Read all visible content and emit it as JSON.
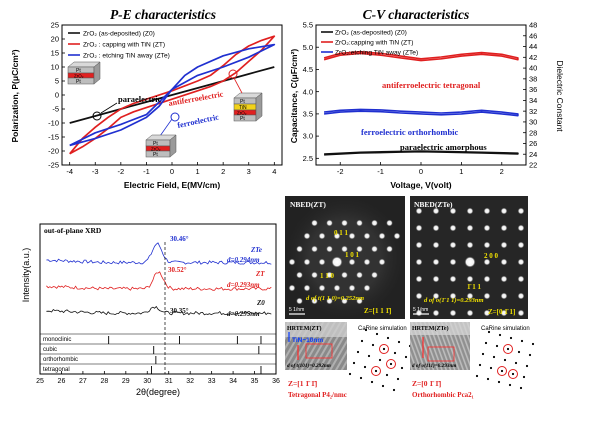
{
  "pe": {
    "title": "P-E characteristics",
    "xlabel": "Electric Field, E(MV/cm)",
    "ylabel": "Polarization, P(μC/cm²)",
    "legend": [
      "ZrO₂ (as-deposited) (Z0)",
      "ZrO₂ : capping with TiN (ZT)",
      "ZrO₂ : etching TiN away (ZTe)"
    ],
    "labels": {
      "paraelectric": "paraelectric",
      "antiferro": "antiferroelectric",
      "ferro": "ferroelectric"
    },
    "stack1": [
      "Pt",
      "ZrO₂",
      "Pt"
    ],
    "stack2": [
      "Pt",
      "TiN",
      "ZrO₂",
      "Pt"
    ],
    "stack3": [
      "Pt",
      "ZrO₂",
      "Pt"
    ]
  },
  "cv": {
    "title": "C-V characteristics",
    "xlabel": "Voltage, V(volt)",
    "ylabel": "Capacitance, C(μF/cm²)",
    "y2label": "Dielectric Constant",
    "legend": [
      "ZrO₂ (as-deposited) (Z0)",
      "ZrO₂:capping with TiN (ZT)",
      "ZrO₂:etching TiN away (ZTe)"
    ],
    "labels": {
      "antiferro": "antiferroelectric tetragonal",
      "ferro": "ferroelectric orthorhombic",
      "para": "paraelectric amorphous"
    }
  },
  "xrd": {
    "title": "out-of-plane XRD",
    "xlabel": "2θ(degree)",
    "ylabel": "Intensity(a.u.)",
    "ann": [
      {
        "name": "ZTe",
        "peak": "30.46°",
        "d": "d=0.294nm"
      },
      {
        "name": "ZT",
        "peak": "30.52°",
        "d": "d=0.293nm"
      },
      {
        "name": "Z0",
        "peak": "30.35°",
        "d": "d=0.295nm"
      }
    ],
    "refs": [
      "monoclinic",
      "cubic",
      "orthorhombic",
      "tetragonal"
    ]
  },
  "nbed_zt": {
    "title": "NBED(ZT)",
    "spots": [
      "0 1 1",
      "1 0 1",
      "1 1 0"
    ],
    "dtext": "d of t(1 1 0)=0.252nm",
    "zone": "Z=[1 1 1̄]",
    "scale": "5 1/nm"
  },
  "nbed_zte": {
    "title": "NBED(ZTe)",
    "spots": [
      "2 0 0",
      "1̄ 1 1"
    ],
    "dtext": "d of o(1̄ 1 1)=0.293nm",
    "zone": "Z=[0 1̄ 1]",
    "scale": "5 1/nm"
  },
  "hrtem_zt": {
    "title": "HRTEM(ZT)",
    "tin": "TiN~10nm",
    "dtext": "d of t(101)=0.292nm",
    "sim": "CaRine simulation",
    "zone": "Z=[1 1̄ 1̄]",
    "phase": "Tetragonal P4₂/nmc"
  },
  "hrtem_zte": {
    "title": "HRTEM(ZTe)",
    "dtext": "d of o(111)=0.293nm",
    "sim": "CaRine simulation",
    "zone": "Z=[0 1̄ 1̄]",
    "phase": "Orthorhombic Pca2₁"
  },
  "chart_data": [
    {
      "type": "line",
      "title": "P-E characteristics",
      "xlabel": "Electric Field, E(MV/cm)",
      "ylabel": "Polarization, P(μC/cm²)",
      "xlim": [
        -4.3,
        4.3
      ],
      "ylim": [
        -25,
        25
      ],
      "xticks": [
        -4,
        -3,
        -2,
        -1,
        0,
        1,
        2,
        3,
        4
      ],
      "yticks": [
        -25,
        -20,
        -15,
        -10,
        -5,
        0,
        5,
        10,
        15,
        20,
        25
      ],
      "series": [
        {
          "name": "ZrO₂ (as-deposited) (Z0)",
          "color": "#111111",
          "x": [
            -4,
            -3,
            -2,
            -1,
            0,
            1,
            2,
            3,
            4
          ],
          "y": [
            -10,
            -7.5,
            -5,
            -2.5,
            0,
            2.5,
            5,
            7.5,
            10
          ]
        },
        {
          "name": "ZrO₂ : capping with TiN (ZT)",
          "color": "#e02020",
          "x": [
            -4,
            -3.5,
            -3,
            -2.5,
            -2,
            -1.5,
            -1,
            0,
            1,
            1.5,
            2,
            2.5,
            3,
            3.5,
            4,
            3.5,
            3,
            2.5,
            2,
            1.5,
            1,
            0,
            -1,
            -1.5,
            -2,
            -2.5,
            -3,
            -3.5,
            -4
          ],
          "y": [
            -21,
            -18.5,
            -15.5,
            -12,
            -8,
            -6,
            -4.5,
            -1.5,
            1.5,
            3,
            5,
            8,
            12,
            16,
            21,
            19.5,
            17.5,
            14.5,
            10.5,
            7,
            5,
            1.5,
            -1.5,
            -3,
            -5,
            -8,
            -11.5,
            -15.5,
            -21
          ]
        },
        {
          "name": "ZrO₂ : etching TiN away (ZTe)",
          "color": "#2030d0",
          "x": [
            -4,
            -3,
            -2,
            -1,
            -0.5,
            0,
            1,
            2,
            3,
            4,
            3,
            2,
            1,
            0.5,
            0,
            -1,
            -2,
            -3,
            -4
          ],
          "y": [
            -18,
            -15.5,
            -12.5,
            -8,
            -4,
            2,
            7,
            10,
            13.5,
            18,
            16.5,
            14,
            10,
            7,
            2,
            -7,
            -10.5,
            -13.5,
            -18
          ]
        }
      ]
    },
    {
      "type": "line",
      "title": "C-V characteristics",
      "xlabel": "Voltage, V(volt)",
      "ylabel": "Capacitance, C(μF/cm²)",
      "y2label": "Dielectric Constant",
      "xlim": [
        -2.6,
        2.6
      ],
      "ylim": [
        2.35,
        5.5
      ],
      "y2lim": [
        22,
        48
      ],
      "xticks": [
        -2,
        -1,
        0,
        1,
        2
      ],
      "yticks": [
        2.5,
        3.0,
        3.5,
        4.0,
        4.5,
        5.0,
        5.5
      ],
      "y2ticks": [
        22,
        24,
        26,
        28,
        30,
        32,
        34,
        36,
        38,
        40,
        42,
        44,
        46,
        48
      ],
      "series": [
        {
          "name": "ZrO₂ (as-deposited) (Z0)",
          "color": "#111111",
          "x": [
            -2.4,
            -1.5,
            -0.5,
            0,
            0.5,
            1.5,
            2.4
          ],
          "y": [
            2.58,
            2.62,
            2.64,
            2.65,
            2.64,
            2.62,
            2.6
          ]
        },
        {
          "name": "ZrO₂:capping with TiN (ZT)",
          "color": "#e02020",
          "x": [
            -2.4,
            -2,
            -1.5,
            -1,
            -0.5,
            0,
            0.5,
            1,
            1.5,
            2,
            2.4
          ],
          "y": [
            4.72,
            4.82,
            4.86,
            4.82,
            4.76,
            4.7,
            4.74,
            4.8,
            4.84,
            4.8,
            4.72
          ]
        },
        {
          "name": "ZrO₂:etching TiN away (ZTe)",
          "color": "#2030d0",
          "x": [
            -2.4,
            -2,
            -1.5,
            -1,
            -0.5,
            0,
            0.5,
            1,
            1.5,
            2,
            2.4
          ],
          "y": [
            3.5,
            3.54,
            3.56,
            3.55,
            3.52,
            3.5,
            3.48,
            3.5,
            3.54,
            3.5,
            3.46
          ]
        }
      ]
    },
    {
      "type": "line",
      "title": "out-of-plane XRD",
      "xlabel": "2θ(degree)",
      "ylabel": "Intensity(a.u.)",
      "xlim": [
        25,
        36
      ],
      "xticks": [
        25,
        26,
        27,
        28,
        29,
        30,
        31,
        32,
        33,
        34,
        35,
        36
      ],
      "series": [
        {
          "name": "ZTe",
          "color": "#2030d0",
          "baseline": 3.6,
          "peak_x": 30.46,
          "peak_height": 1.0
        },
        {
          "name": "ZT",
          "color": "#e02020",
          "baseline": 2.2,
          "peak_x": 30.52,
          "peak_height": 0.9
        },
        {
          "name": "Z0",
          "color": "#111111",
          "baseline": 0.9,
          "peak_x": 30.35,
          "peak_height": 0.35
        }
      ],
      "reference_lines": [
        {
          "name": "monoclinic",
          "x": [
            28.2,
            31.5,
            34.2,
            35.3
          ]
        },
        {
          "name": "cubic",
          "x": [
            30.3,
            35.2
          ]
        },
        {
          "name": "orthorhombic",
          "x": [
            30.4
          ]
        },
        {
          "name": "tetragonal",
          "x": [
            30.2,
            35.3
          ]
        }
      ]
    }
  ]
}
